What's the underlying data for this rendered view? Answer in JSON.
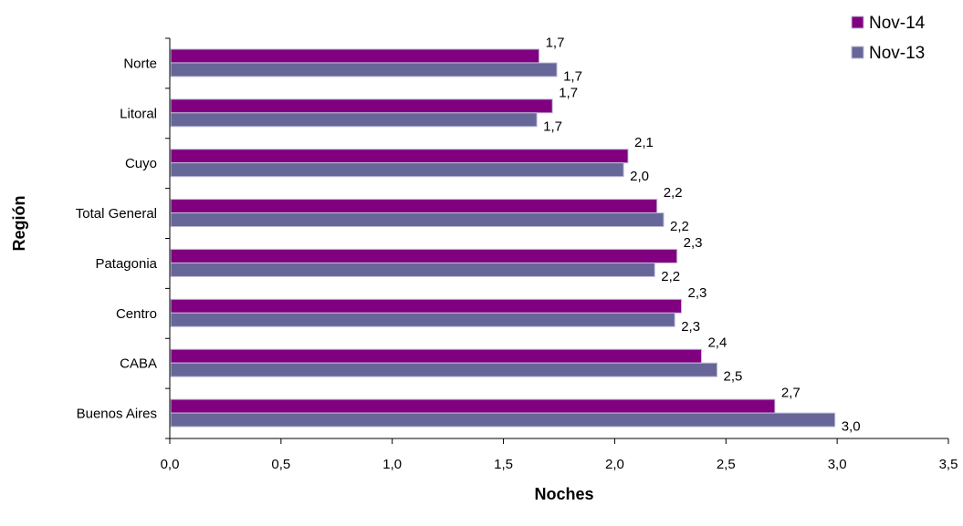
{
  "chart_data": {
    "type": "bar",
    "orientation": "horizontal",
    "categories": [
      "Norte",
      "Litoral",
      "Cuyo",
      "Total General",
      "Patagonia",
      "Centro",
      "CABA",
      "Buenos Aires"
    ],
    "series": [
      {
        "name": "Nov-14",
        "color": "#800080",
        "values": [
          1.66,
          1.72,
          2.06,
          2.19,
          2.28,
          2.3,
          2.39,
          2.72
        ],
        "labels": [
          "1,7",
          "1,7",
          "2,1",
          "2,2",
          "2,3",
          "2,3",
          "2,4",
          "2,7"
        ]
      },
      {
        "name": "Nov-13",
        "color": "#666699",
        "values": [
          1.74,
          1.65,
          2.04,
          2.22,
          2.18,
          2.27,
          2.46,
          2.99
        ],
        "labels": [
          "1,7",
          "1,7",
          "2,0",
          "2,2",
          "2,2",
          "2,3",
          "2,5",
          "3,0"
        ]
      }
    ],
    "xlim": [
      0,
      3.5
    ],
    "xticks": [
      0,
      0.5,
      1.0,
      1.5,
      2.0,
      2.5,
      3.0,
      3.5
    ],
    "xtick_labels": [
      "0,0",
      "0,5",
      "1,0",
      "1,5",
      "2,0",
      "2,5",
      "3,0",
      "3,5"
    ],
    "xlabel": "Noches",
    "ylabel": "Región",
    "grid": false,
    "legend_position": "top-right"
  }
}
